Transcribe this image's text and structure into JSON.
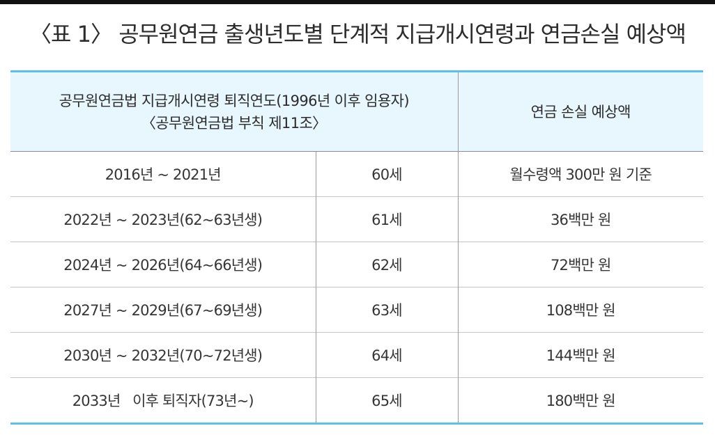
{
  "title": "〈표 1〉 공무원연금 출생년도별 단계적 지급개시연령과 연금손실 예상액",
  "header": {
    "col1_line1": "공무원연금법 지급개시연령 퇴직연도(1996년 이후 임용자)",
    "col1_line2": "〈공무원연금법 부칙 제11조〉",
    "col2": "연금 손실 예상액"
  },
  "rows": [
    {
      "period": "2016년 ~ 2021년",
      "age": "60세",
      "loss": "월수령액 300만 원 기준"
    },
    {
      "period": "2022년 ~ 2023년(62~63년생)",
      "age": "61세",
      "loss": "36백만 원"
    },
    {
      "period": "2024년 ~ 2026년(64~66년생)",
      "age": "62세",
      "loss": "72백만 원"
    },
    {
      "period": "2027년 ~ 2029년(67~69년생)",
      "age": "63세",
      "loss": "108백만 원"
    },
    {
      "period": "2030년 ~ 2032년(70~72년생)",
      "age": "64세",
      "loss": "144백만 원"
    },
    {
      "period": "2033년   이후 퇴직자(73년~)",
      "age": "65세",
      "loss": "180백만 원"
    }
  ]
}
